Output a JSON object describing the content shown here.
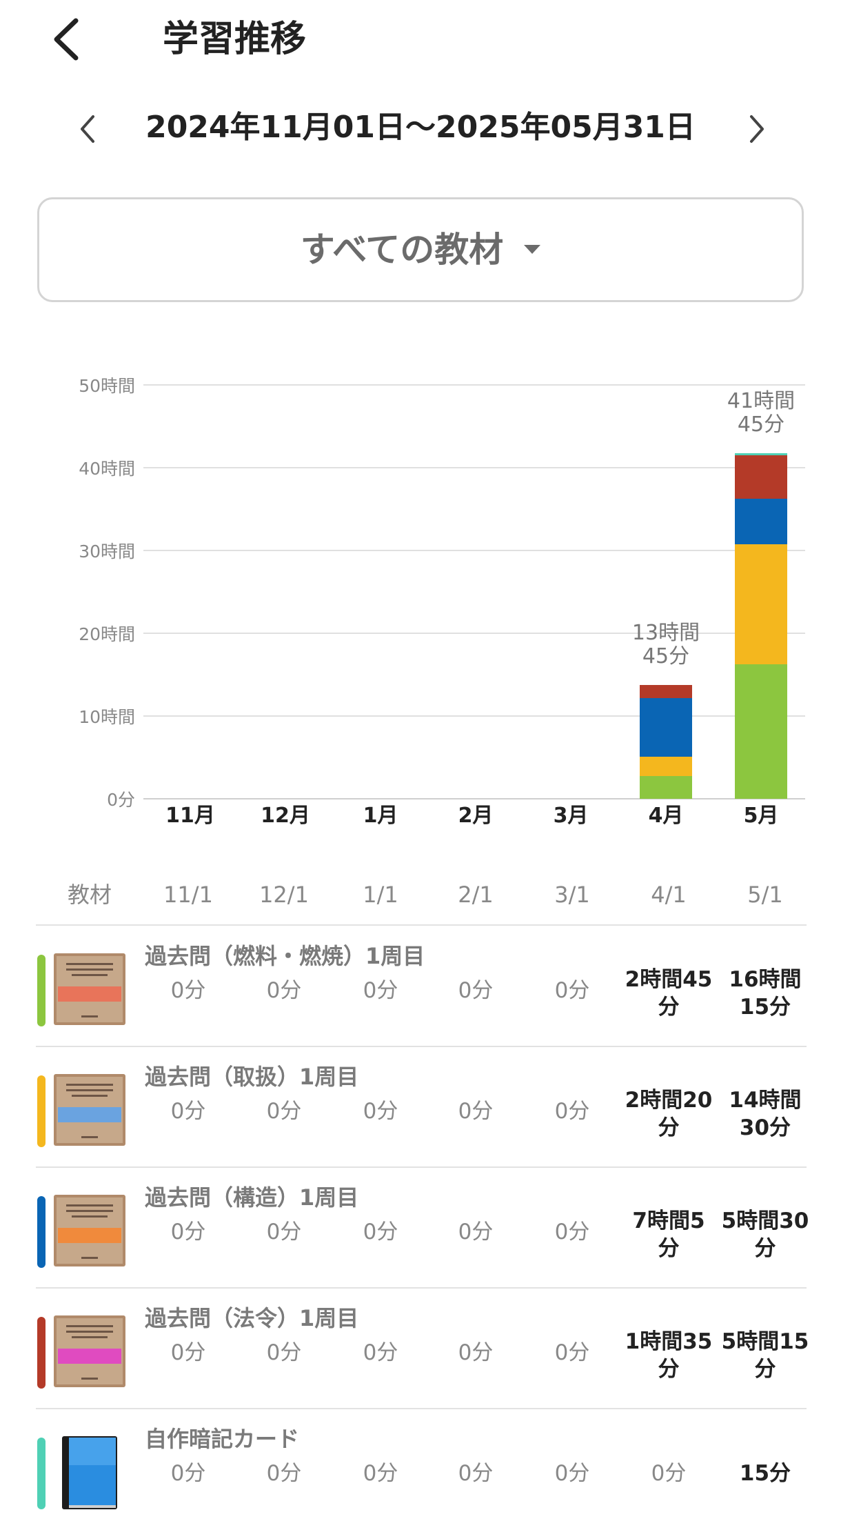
{
  "header": {
    "title": "学習推移"
  },
  "range": {
    "text": "2024年11月01日〜2025年05月31日"
  },
  "filter": {
    "label": "すべての教材"
  },
  "colors": {
    "green": "#8cc63f",
    "yellow": "#f4b71e",
    "blue": "#0a65b4",
    "red": "#b43a28",
    "teal": "#4fd0b5",
    "gridline": "#e0e0e0"
  },
  "chart_data": {
    "type": "bar",
    "stacked": true,
    "categories": [
      "11月",
      "12月",
      "1月",
      "2月",
      "3月",
      "4月",
      "5月"
    ],
    "y_tick_labels": [
      "0分",
      "10時間",
      "20時間",
      "30時間",
      "40時間",
      "50時間"
    ],
    "ylim": [
      0,
      50
    ],
    "grid": true,
    "series": [
      {
        "material": "過去問（燃料・燃焼）1周目",
        "color": "#8cc63f",
        "values": [
          0,
          0,
          0,
          0,
          0,
          2.75,
          16.25
        ]
      },
      {
        "material": "過去問（取扱）1周目",
        "color": "#f4b71e",
        "values": [
          0,
          0,
          0,
          0,
          0,
          2.333,
          14.5
        ]
      },
      {
        "material": "過去問（構造）1周目",
        "color": "#0a65b4",
        "values": [
          0,
          0,
          0,
          0,
          0,
          7.083,
          5.5
        ]
      },
      {
        "material": "過去問（法令）1周目",
        "color": "#b43a28",
        "values": [
          0,
          0,
          0,
          0,
          0,
          1.583,
          5.25
        ]
      },
      {
        "material": "自作暗記カード",
        "color": "#4fd0b5",
        "values": [
          0,
          0,
          0,
          0,
          0,
          0,
          0.25
        ]
      }
    ],
    "totals": [
      {
        "category": "4月",
        "label_line1": "13時間",
        "label_line2": "45分"
      },
      {
        "category": "5月",
        "label_line1": "41時間",
        "label_line2": "45分"
      }
    ]
  },
  "table": {
    "header": [
      "教材",
      "11/1",
      "12/1",
      "1/1",
      "2/1",
      "3/1",
      "4/1",
      "5/1"
    ],
    "rows": [
      {
        "title": "過去問（燃料・燃焼）1周目",
        "color": "#8cc63f",
        "thumb_band": "#e8745a",
        "cells": [
          "0分",
          "0分",
          "0分",
          "0分",
          "0分",
          "2時間45分",
          "16時間15分"
        ],
        "cells_l1": [
          "",
          "",
          "",
          "",
          "",
          "2時間45",
          "16時間"
        ],
        "cells_l2": [
          "",
          "",
          "",
          "",
          "",
          "分",
          "15分"
        ]
      },
      {
        "title": "過去問（取扱）1周目",
        "color": "#f4b71e",
        "thumb_band": "#6aa3e0",
        "cells": [
          "0分",
          "0分",
          "0分",
          "0分",
          "0分",
          "2時間20分",
          "14時間30分"
        ],
        "cells_l1": [
          "",
          "",
          "",
          "",
          "",
          "2時間20",
          "14時間"
        ],
        "cells_l2": [
          "",
          "",
          "",
          "",
          "",
          "分",
          "30分"
        ]
      },
      {
        "title": "過去問（構造）1周目",
        "color": "#0a65b4",
        "thumb_band": "#f08a3c",
        "cells": [
          "0分",
          "0分",
          "0分",
          "0分",
          "0分",
          "7時間5分",
          "5時間30分"
        ],
        "cells_l1": [
          "",
          "",
          "",
          "",
          "",
          "7時間5",
          "5時間30"
        ],
        "cells_l2": [
          "",
          "",
          "",
          "",
          "",
          "分",
          "分"
        ]
      },
      {
        "title": "過去問（法令）1周目",
        "color": "#b43a28",
        "thumb_band": "#e04bc0",
        "cells": [
          "0分",
          "0分",
          "0分",
          "0分",
          "0分",
          "1時間35分",
          "5時間15分"
        ],
        "cells_l1": [
          "",
          "",
          "",
          "",
          "",
          "1時間35",
          "5時間15"
        ],
        "cells_l2": [
          "",
          "",
          "",
          "",
          "",
          "分",
          "分"
        ]
      },
      {
        "title": "自作暗記カード",
        "color": "#4fd0b5",
        "thumb_band": "",
        "cells": [
          "0分",
          "0分",
          "0分",
          "0分",
          "0分",
          "0分",
          "15分"
        ],
        "cells_l1": [
          "",
          "",
          "",
          "",
          "",
          "",
          ""
        ],
        "cells_l2": [
          "",
          "",
          "",
          "",
          "",
          "",
          ""
        ]
      }
    ]
  }
}
